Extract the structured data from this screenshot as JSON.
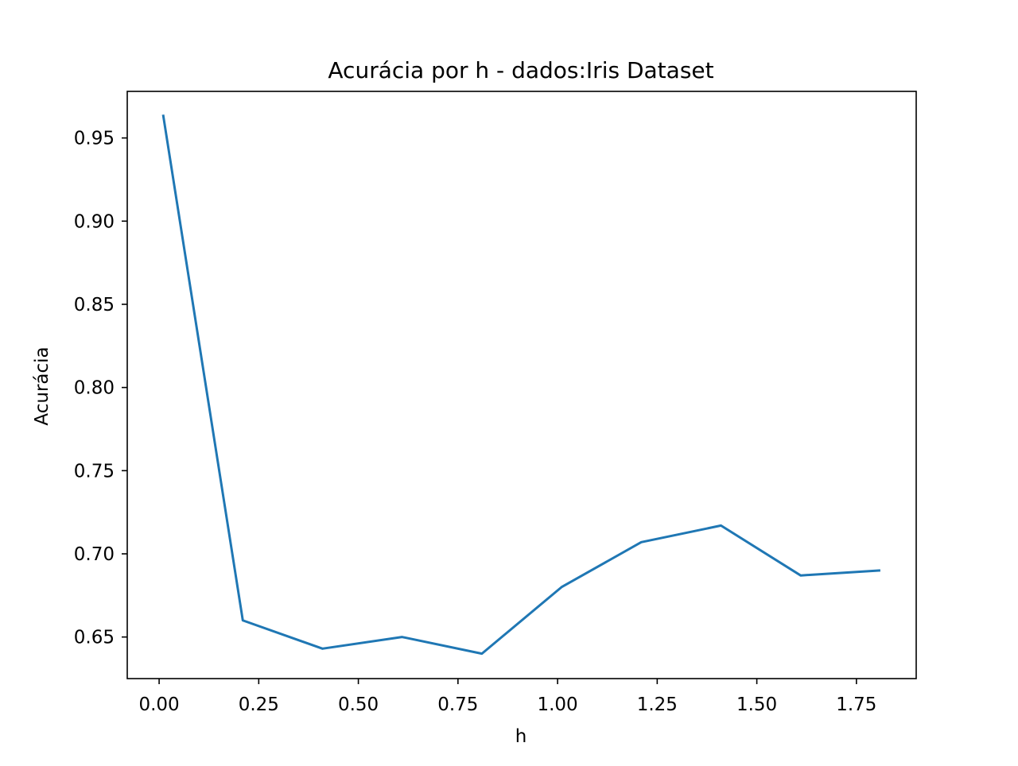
{
  "chart_data": {
    "type": "line",
    "title": "Acurácia por h - dados:Iris Dataset",
    "xlabel": "h",
    "ylabel": "Acurácia",
    "xlim": [
      -0.08,
      1.9
    ],
    "ylim": [
      0.625,
      0.978
    ],
    "xticks": [
      0.0,
      0.25,
      0.5,
      0.75,
      1.0,
      1.25,
      1.5,
      1.75
    ],
    "xtick_labels": [
      "0.00",
      "0.25",
      "0.50",
      "0.75",
      "1.00",
      "1.25",
      "1.50",
      "1.75"
    ],
    "yticks": [
      0.65,
      0.7,
      0.75,
      0.8,
      0.85,
      0.9,
      0.95
    ],
    "ytick_labels": [
      "0.65",
      "0.70",
      "0.75",
      "0.80",
      "0.85",
      "0.90",
      "0.95"
    ],
    "grid": false,
    "series": [
      {
        "color": "#1f77b4",
        "x": [
          0.01,
          0.21,
          0.41,
          0.61,
          0.81,
          1.01,
          1.21,
          1.41,
          1.61,
          1.81
        ],
        "y": [
          0.964,
          0.66,
          0.643,
          0.65,
          0.64,
          0.68,
          0.707,
          0.717,
          0.687,
          0.69
        ]
      }
    ]
  }
}
